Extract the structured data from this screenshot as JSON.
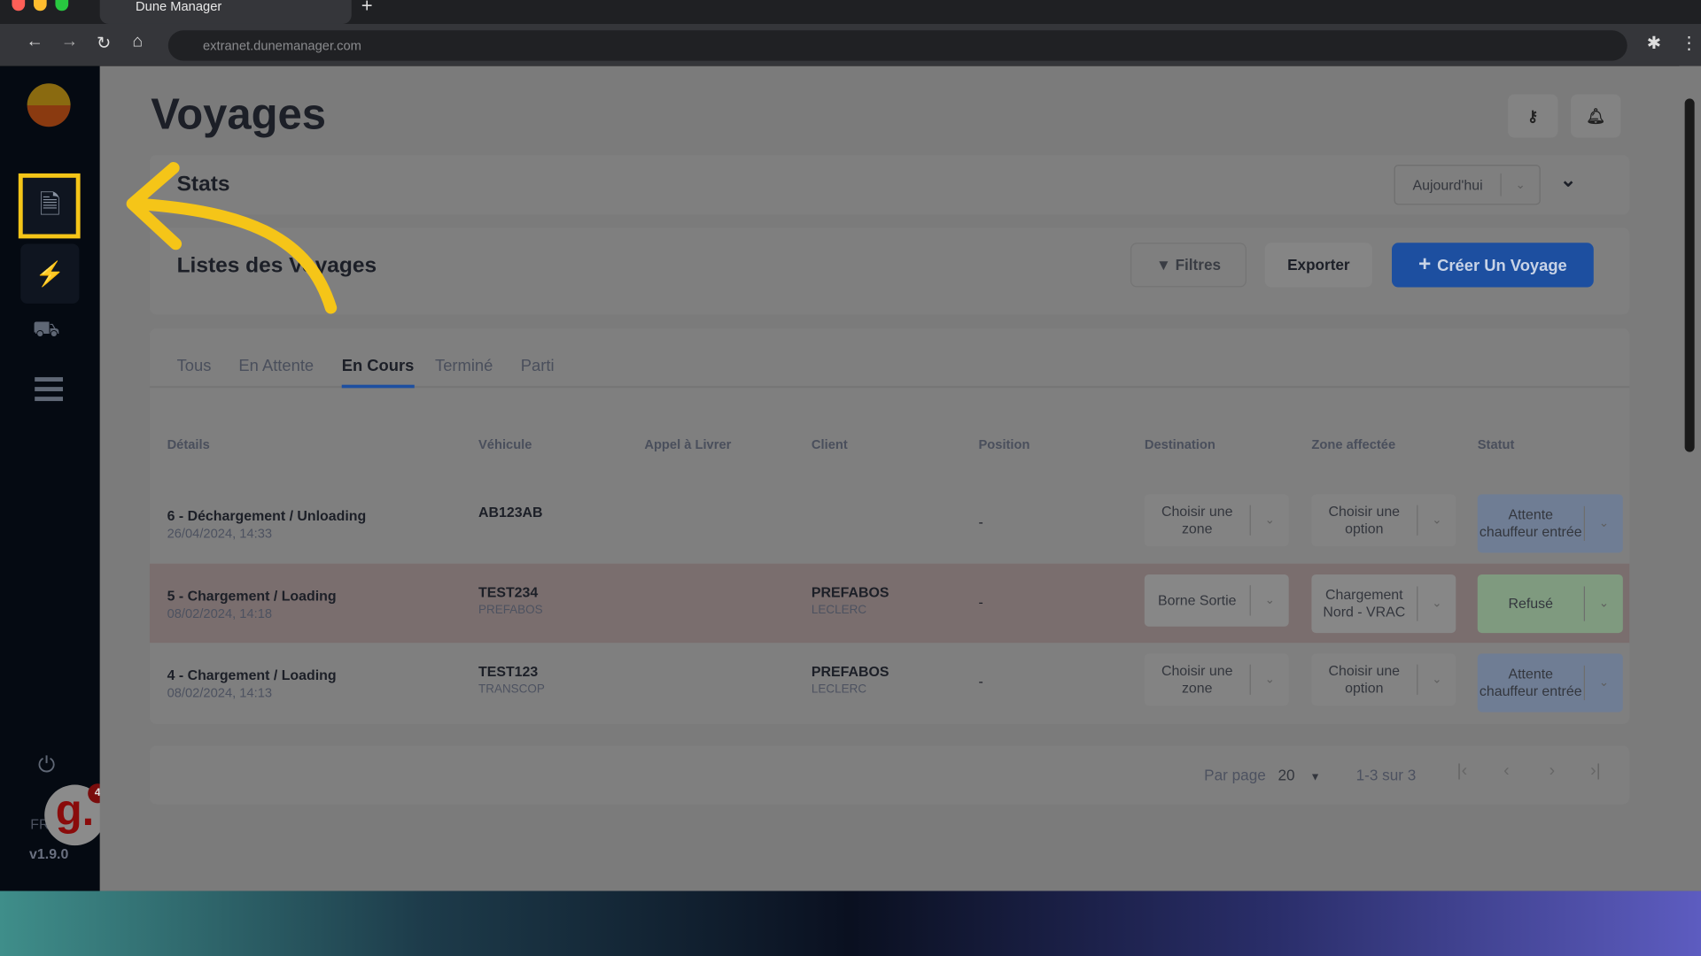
{
  "browser": {
    "tab_title": "Dune Manager",
    "url": "extranet.dunemanager.com"
  },
  "page": {
    "title": "Voyages"
  },
  "stats": {
    "label": "Stats",
    "period": "Aujourd'hui"
  },
  "list": {
    "title": "Listes des Voyages",
    "filters_label": "Filtres",
    "export_label": "Exporter",
    "create_label": "Créer Un Voyage"
  },
  "tabs": [
    {
      "label": "Tous"
    },
    {
      "label": "En Attente"
    },
    {
      "label": "En Cours",
      "active": true
    },
    {
      "label": "Terminé"
    },
    {
      "label": "Parti"
    }
  ],
  "columns": [
    "Détails",
    "Véhicule",
    "Appel à Livrer",
    "Client",
    "Position",
    "Destination",
    "Zone affectée",
    "Statut"
  ],
  "rows": [
    {
      "title": "6 - Déchargement / Unloading",
      "date": "26/04/2024, 14:33",
      "vehicle": "AB123AB",
      "vehicle_sub": "",
      "client": "",
      "client_sub": "",
      "position": "-",
      "destination": "Choisir une zone",
      "zone": "Choisir une option",
      "status": "Attente chauffeur entrée",
      "highlight": false
    },
    {
      "title": "5 - Chargement / Loading",
      "date": "08/02/2024, 14:18",
      "vehicle": "TEST234",
      "vehicle_sub": "PREFABOS",
      "client": "PREFABOS",
      "client_sub": "LECLERC",
      "position": "-",
      "destination": "Borne Sortie",
      "zone": "Chargement Nord - VRAC",
      "status": "Refusé",
      "highlight": true
    },
    {
      "title": "4 - Chargement / Loading",
      "date": "08/02/2024, 14:13",
      "vehicle": "TEST123",
      "vehicle_sub": "TRANSCOP",
      "client": "PREFABOS",
      "client_sub": "LECLERC",
      "position": "-",
      "destination": "Choisir une zone",
      "zone": "Choisir une option",
      "status": "Attente chauffeur entrée",
      "highlight": false
    }
  ],
  "pagination": {
    "per_page_label": "Par page",
    "per_page": "20",
    "range": "1-3 sur 3"
  },
  "sidebar": {
    "lang": "FR",
    "version": "v1.9.0",
    "badge_count": "4"
  },
  "colors": {
    "accent": "#1d4fa0",
    "highlight": "#f5c518",
    "refused": "#7f9a7f",
    "waiting": "#6f7d94"
  }
}
